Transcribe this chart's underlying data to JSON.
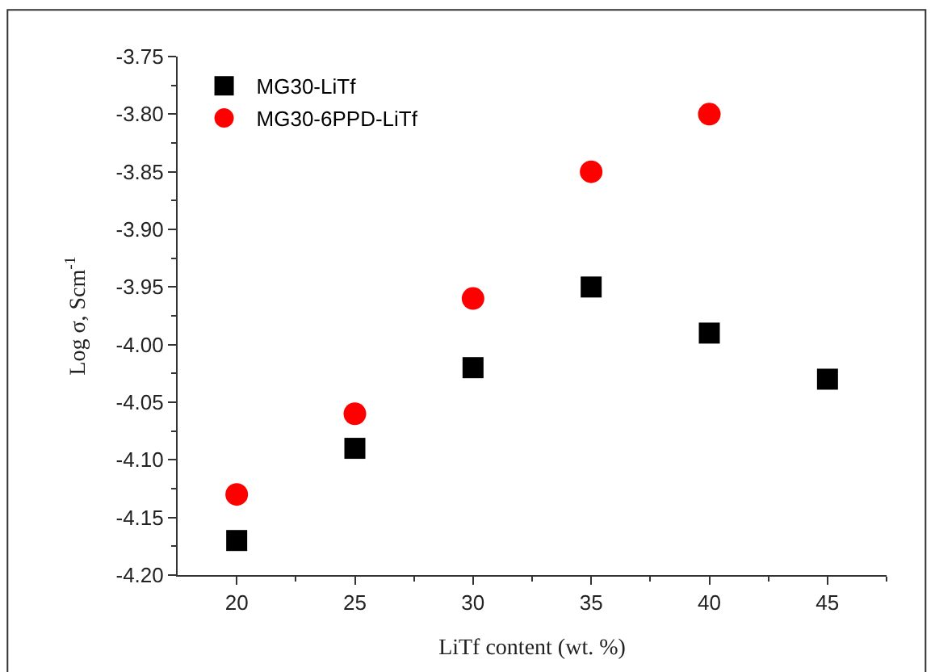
{
  "chart_data": {
    "type": "scatter",
    "xlabel": "LiTf content (wt. %)",
    "ylabel": "Log σ, Scm$^{-1}$",
    "x": [
      20,
      25,
      30,
      35,
      40,
      45
    ],
    "series": [
      {
        "name": "MG30-LiTf",
        "color": "#000000",
        "marker": "square",
        "values": [
          -4.17,
          -4.09,
          -4.02,
          -3.95,
          -3.99,
          -4.03
        ]
      },
      {
        "name": "MG30-6PPD-LiTf",
        "color": "#ff0000",
        "marker": "circle",
        "values": [
          -4.13,
          -4.06,
          -3.96,
          -3.85,
          -3.8,
          null
        ]
      }
    ],
    "xlim": [
      17.5,
      47.5
    ],
    "xticks": [
      20,
      25,
      30,
      35,
      40,
      45
    ],
    "ylim": [
      -4.2,
      -3.75
    ],
    "yticks": [
      {
        "value": -4.2,
        "label": "-4.20"
      },
      {
        "value": -4.15,
        "label": "-4.15"
      },
      {
        "value": -4.1,
        "label": "-4.10"
      },
      {
        "value": -4.05,
        "label": "-4.05"
      },
      {
        "value": -4.0,
        "label": "-4.00"
      },
      {
        "value": -3.95,
        "label": "-3.95"
      },
      {
        "value": -3.9,
        "label": "-3.90"
      },
      {
        "value": -3.85,
        "label": "-3.85"
      },
      {
        "value": -3.8,
        "label": "-3.80"
      },
      {
        "value": -3.75,
        "label": "-3.75"
      }
    ],
    "legend": "top left"
  }
}
